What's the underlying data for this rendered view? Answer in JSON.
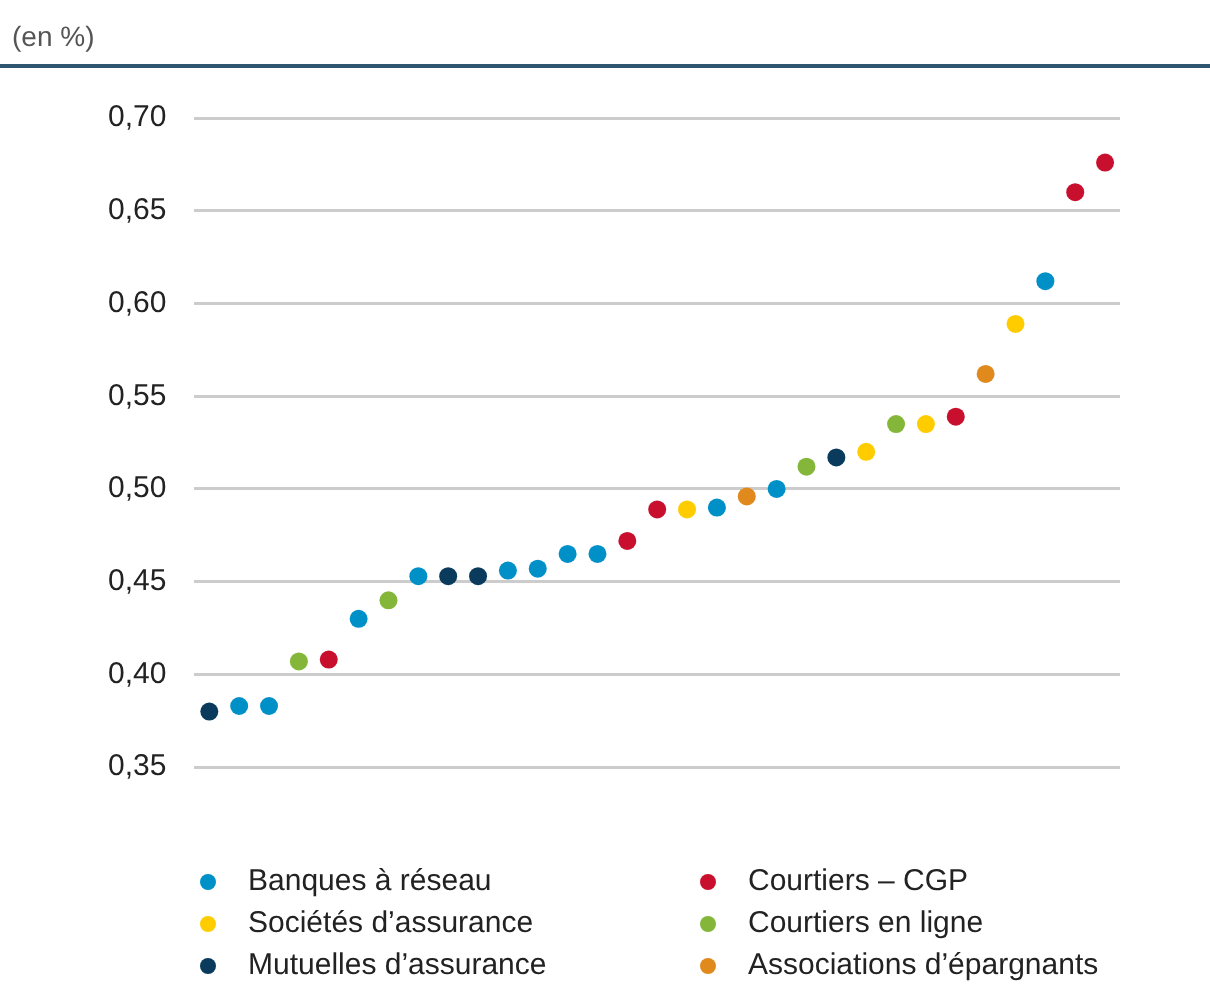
{
  "chart_data": {
    "type": "scatter",
    "ylabel": "(en %)",
    "categories": [
      null,
      null,
      null,
      null,
      null,
      null,
      null,
      null,
      null,
      null,
      null,
      null,
      null,
      null,
      null,
      null,
      null,
      null,
      null,
      null,
      null,
      null,
      null,
      null,
      null,
      null,
      null,
      null,
      null,
      null,
      null
    ],
    "series": [
      {
        "name": "Banques à réseau",
        "color": "#0090c8",
        "values": [
          null,
          0.383,
          0.383,
          null,
          null,
          0.43,
          null,
          0.453,
          null,
          null,
          0.456,
          0.457,
          0.465,
          0.465,
          null,
          null,
          null,
          0.49,
          null,
          0.5,
          null,
          null,
          null,
          null,
          null,
          null,
          null,
          null,
          0.612,
          null,
          null
        ]
      },
      {
        "name": "Courtiers – CGP",
        "color": "#c8102e",
        "values": [
          null,
          null,
          null,
          null,
          0.408,
          null,
          null,
          null,
          null,
          null,
          null,
          null,
          null,
          null,
          0.472,
          0.489,
          null,
          null,
          null,
          null,
          null,
          null,
          null,
          null,
          null,
          0.539,
          null,
          null,
          null,
          0.66,
          0.676
        ]
      },
      {
        "name": "Sociétés d’assurance",
        "color": "#ffcc00",
        "values": [
          null,
          null,
          null,
          null,
          null,
          null,
          null,
          null,
          null,
          null,
          null,
          null,
          null,
          null,
          null,
          null,
          0.489,
          null,
          null,
          null,
          null,
          null,
          0.52,
          null,
          0.535,
          null,
          null,
          0.589,
          null,
          null,
          null
        ]
      },
      {
        "name": "Courtiers en ligne",
        "color": "#84b739",
        "values": [
          null,
          null,
          null,
          0.407,
          null,
          null,
          0.44,
          null,
          null,
          null,
          null,
          null,
          null,
          null,
          null,
          null,
          null,
          null,
          null,
          null,
          0.512,
          null,
          null,
          0.535,
          null,
          null,
          null,
          null,
          null,
          null,
          null
        ]
      },
      {
        "name": "Mutuelles d’assurance",
        "color": "#0a3a5c",
        "values": [
          0.38,
          null,
          null,
          null,
          null,
          null,
          null,
          null,
          0.453,
          0.453,
          null,
          null,
          null,
          null,
          null,
          null,
          null,
          null,
          null,
          null,
          null,
          0.517,
          null,
          null,
          null,
          null,
          null,
          null,
          null,
          null,
          null
        ]
      },
      {
        "name": "Associations d’épargnants",
        "color": "#e08a1e",
        "values": [
          null,
          null,
          null,
          null,
          null,
          null,
          null,
          null,
          null,
          null,
          null,
          null,
          null,
          null,
          null,
          null,
          null,
          null,
          0.496,
          null,
          null,
          null,
          null,
          null,
          null,
          null,
          0.562,
          null,
          null,
          null,
          null
        ]
      }
    ],
    "ylim": [
      0.35,
      0.7
    ],
    "yticks": [
      {
        "value": 0.35,
        "label": "0,35"
      },
      {
        "value": 0.4,
        "label": "0,40"
      },
      {
        "value": 0.45,
        "label": "0,45"
      },
      {
        "value": 0.5,
        "label": "0,50"
      },
      {
        "value": 0.55,
        "label": "0,55"
      },
      {
        "value": 0.6,
        "label": "0,60"
      },
      {
        "value": 0.65,
        "label": "0,65"
      },
      {
        "value": 0.7,
        "label": "0,70"
      }
    ],
    "grid": "y",
    "legend": "bottom",
    "marker": "circle"
  }
}
